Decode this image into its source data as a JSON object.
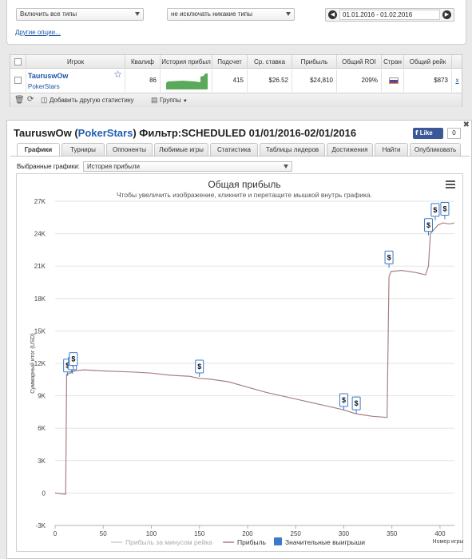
{
  "filters": {
    "types_select": "Включить все типы",
    "exclude_select": "не исключать никакие типы",
    "date_range": "01.01.2016 - 01.02.2016",
    "other_options": "Другие опции..."
  },
  "player_table": {
    "headers": [
      "Игрок",
      "Квалиф",
      "История прибыл",
      "Подсчет",
      "Ср. ставка",
      "Прибыль",
      "Общий ROI",
      "Стран",
      "Общий рейк"
    ],
    "row": {
      "player": "TauruswOw",
      "site": "PokerStars",
      "qualif": "86",
      "count": "415",
      "avg_stake": "$26.52",
      "profit": "$24,810",
      "roi": "209%",
      "rake": "$873",
      "remove": "x"
    },
    "footer_add": "Добавить другую статистику",
    "footer_groups": "Группы"
  },
  "panel": {
    "player": "TauruswOw",
    "site": "PokerStars",
    "filter_text": "Фильтр:SCHEDULED 01/01/2016-02/01/2016",
    "fb_like": "Like",
    "fb_count": "0",
    "tabs": [
      "Графики",
      "Турниры",
      "Оппоненты",
      "Любимые игры",
      "Статистика",
      "Таблицы лидеров",
      "Достижения",
      "Найти",
      "Опубликовать"
    ],
    "selected_charts_label": "Выбранные графики:",
    "selected_chart": "История прибыли"
  },
  "chart_data": {
    "type": "line",
    "title": "Общая прибыль",
    "subtitle": "Чтобы увеличить изображение, кликните и перетащите мышкой внутрь графика.",
    "ylabel": "Суммарный итог (USD)",
    "xlabel": "Номер игры",
    "ylim": [
      -3000,
      27000
    ],
    "xlim": [
      0,
      415
    ],
    "y_ticks": [
      -3000,
      0,
      3000,
      6000,
      9000,
      12000,
      15000,
      18000,
      21000,
      24000,
      27000
    ],
    "y_tick_labels": [
      "-3K",
      "0",
      "3K",
      "6K",
      "9K",
      "12K",
      "15K",
      "18K",
      "21K",
      "24K",
      "27K"
    ],
    "x_ticks": [
      0,
      50,
      100,
      150,
      200,
      250,
      300,
      350,
      400
    ],
    "series": [
      {
        "name": "Прибыль",
        "color": "#a88080",
        "points": [
          [
            0,
            0
          ],
          [
            5,
            -50
          ],
          [
            9,
            -100
          ],
          [
            11,
            -100
          ],
          [
            12,
            11000
          ],
          [
            16,
            11100
          ],
          [
            20,
            11300
          ],
          [
            30,
            11400
          ],
          [
            50,
            11300
          ],
          [
            80,
            11200
          ],
          [
            100,
            11100
          ],
          [
            120,
            10900
          ],
          [
            140,
            10800
          ],
          [
            150,
            10600
          ],
          [
            160,
            10550
          ],
          [
            180,
            10300
          ],
          [
            200,
            9800
          ],
          [
            220,
            9300
          ],
          [
            240,
            8900
          ],
          [
            260,
            8500
          ],
          [
            280,
            8100
          ],
          [
            300,
            7700
          ],
          [
            310,
            7400
          ],
          [
            315,
            7300
          ],
          [
            330,
            7100
          ],
          [
            345,
            7000
          ],
          [
            347,
            20000
          ],
          [
            349,
            20500
          ],
          [
            360,
            20600
          ],
          [
            375,
            20400
          ],
          [
            385,
            20200
          ],
          [
            388,
            21000
          ],
          [
            390,
            24000
          ],
          [
            398,
            24800
          ],
          [
            403,
            25000
          ],
          [
            410,
            24900
          ],
          [
            415,
            25000
          ]
        ]
      }
    ],
    "big_wins": [
      [
        13,
        11800
      ],
      [
        18,
        12000
      ],
      [
        19,
        12400
      ],
      [
        150,
        11700
      ],
      [
        300,
        8600
      ],
      [
        313,
        8300
      ],
      [
        347,
        21800
      ],
      [
        388,
        24800
      ],
      [
        395,
        26200
      ],
      [
        405,
        26300
      ]
    ],
    "legend": [
      "Прибыль за минусом рейка",
      "Прибыль",
      "Значительные выигрыши"
    ],
    "legend_colors": [
      "#cccccc",
      "#a88080",
      "#3a78c9"
    ]
  }
}
